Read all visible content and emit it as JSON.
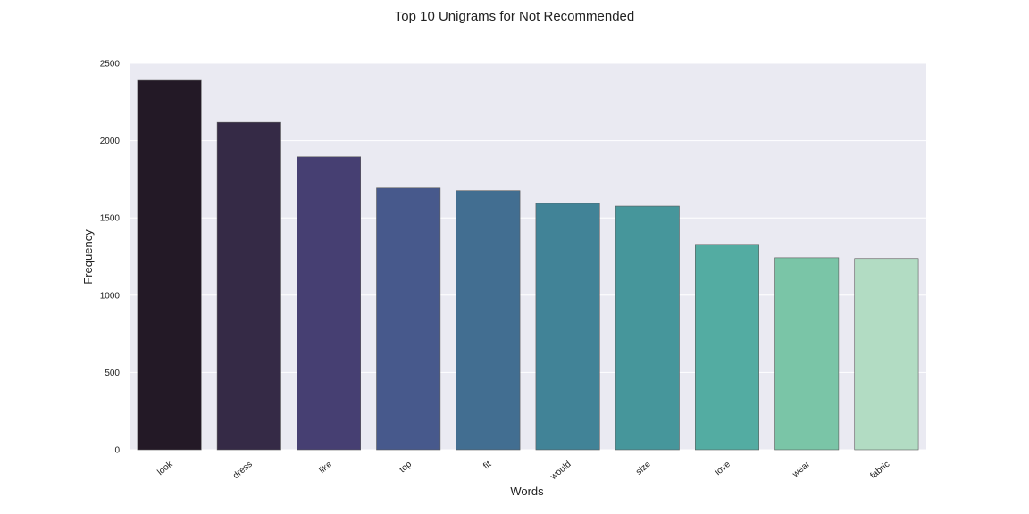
{
  "chart_data": {
    "type": "bar",
    "title": "Top 10 Unigrams for Not Recommended",
    "xlabel": "Words",
    "ylabel": "Frequency",
    "categories": [
      "look",
      "dress",
      "like",
      "top",
      "fit",
      "would",
      "size",
      "love",
      "wear",
      "fabric"
    ],
    "values": [
      2390,
      2118,
      1895,
      1693,
      1676,
      1594,
      1576,
      1329,
      1242,
      1237
    ],
    "ylim": [
      0,
      2500
    ],
    "yticks": [
      "0",
      "500",
      "1000",
      "1500",
      "2000",
      "2500"
    ],
    "grid": true,
    "colors": [
      "#231926",
      "#352a46",
      "#463f72",
      "#47598c",
      "#426e91",
      "#418397",
      "#46969b",
      "#53aca2",
      "#7ac5a7",
      "#b2dcc3"
    ],
    "plot_background": "#eaeaf2"
  }
}
